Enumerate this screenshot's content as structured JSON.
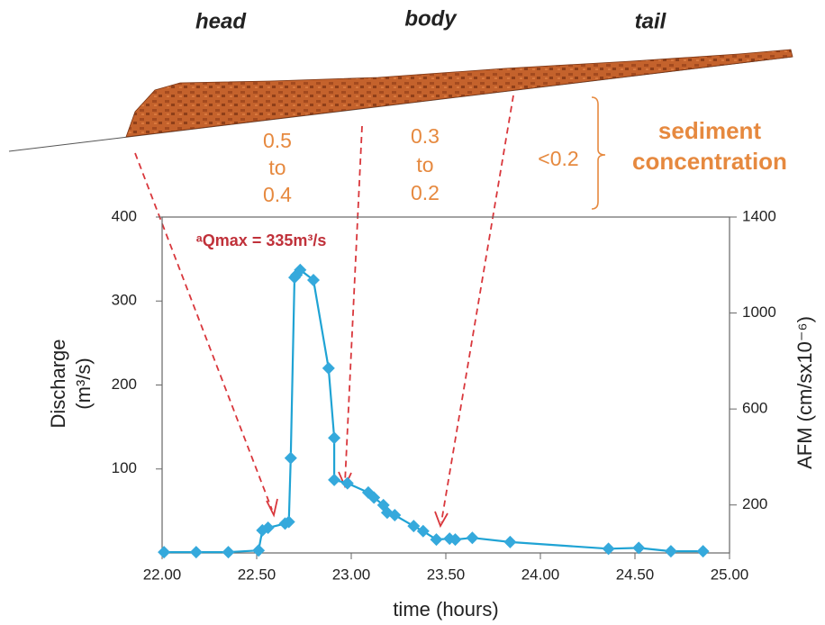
{
  "diagram": {
    "parts": [
      "head",
      "body",
      "tail"
    ],
    "concentration": [
      [
        "0.5",
        "to",
        "0.4"
      ],
      [
        "0.3",
        "to",
        "0.2"
      ],
      [
        "<0.2"
      ]
    ],
    "legend": [
      "sediment",
      "concentration"
    ]
  },
  "chart_data": {
    "type": "line",
    "annotation": "ᵃQmax = 335m³/s",
    "y_label": [
      "Discharge",
      "(m³/s)"
    ],
    "y2_label": "AFM (cm/sx10⁻⁶)",
    "x_label": "time (hours)",
    "color": "#1fa3d4",
    "marker_color": "#35a9dc",
    "x": [
      22.01,
      22.18,
      22.35,
      22.51,
      22.53,
      22.56,
      22.65,
      22.67,
      22.68,
      22.7,
      22.71,
      22.73,
      22.8,
      22.88,
      22.91,
      22.91,
      22.98,
      23.09,
      23.12,
      23.17,
      23.19,
      23.23,
      23.33,
      23.38,
      23.45,
      23.52,
      23.55,
      23.64,
      23.84,
      24.36,
      24.52,
      24.69,
      24.86
    ],
    "values": [
      1,
      1,
      1,
      3,
      27,
      30,
      35,
      37,
      113,
      328,
      331,
      337,
      325,
      220,
      137,
      87,
      83,
      72,
      66,
      57,
      48,
      45,
      32,
      26,
      16,
      17,
      16,
      18,
      13,
      5,
      6,
      2,
      2
    ],
    "xlim": [
      22,
      25
    ],
    "xticks": [
      {
        "value": 22,
        "label": "22.00"
      },
      {
        "value": 22.5,
        "label": "22.50"
      },
      {
        "value": 23,
        "label": "23.00"
      },
      {
        "value": 23.5,
        "label": "23.50"
      },
      {
        "value": 24,
        "label": "24.00"
      },
      {
        "value": 24.5,
        "label": "24.50"
      },
      {
        "value": 25,
        "label": "25.00"
      }
    ],
    "ylim": [
      0,
      400
    ],
    "yticks": [
      100,
      200,
      300,
      400
    ],
    "y2lim": [
      0,
      1400
    ],
    "y2ticks": [
      200,
      600,
      1000,
      1400
    ]
  }
}
